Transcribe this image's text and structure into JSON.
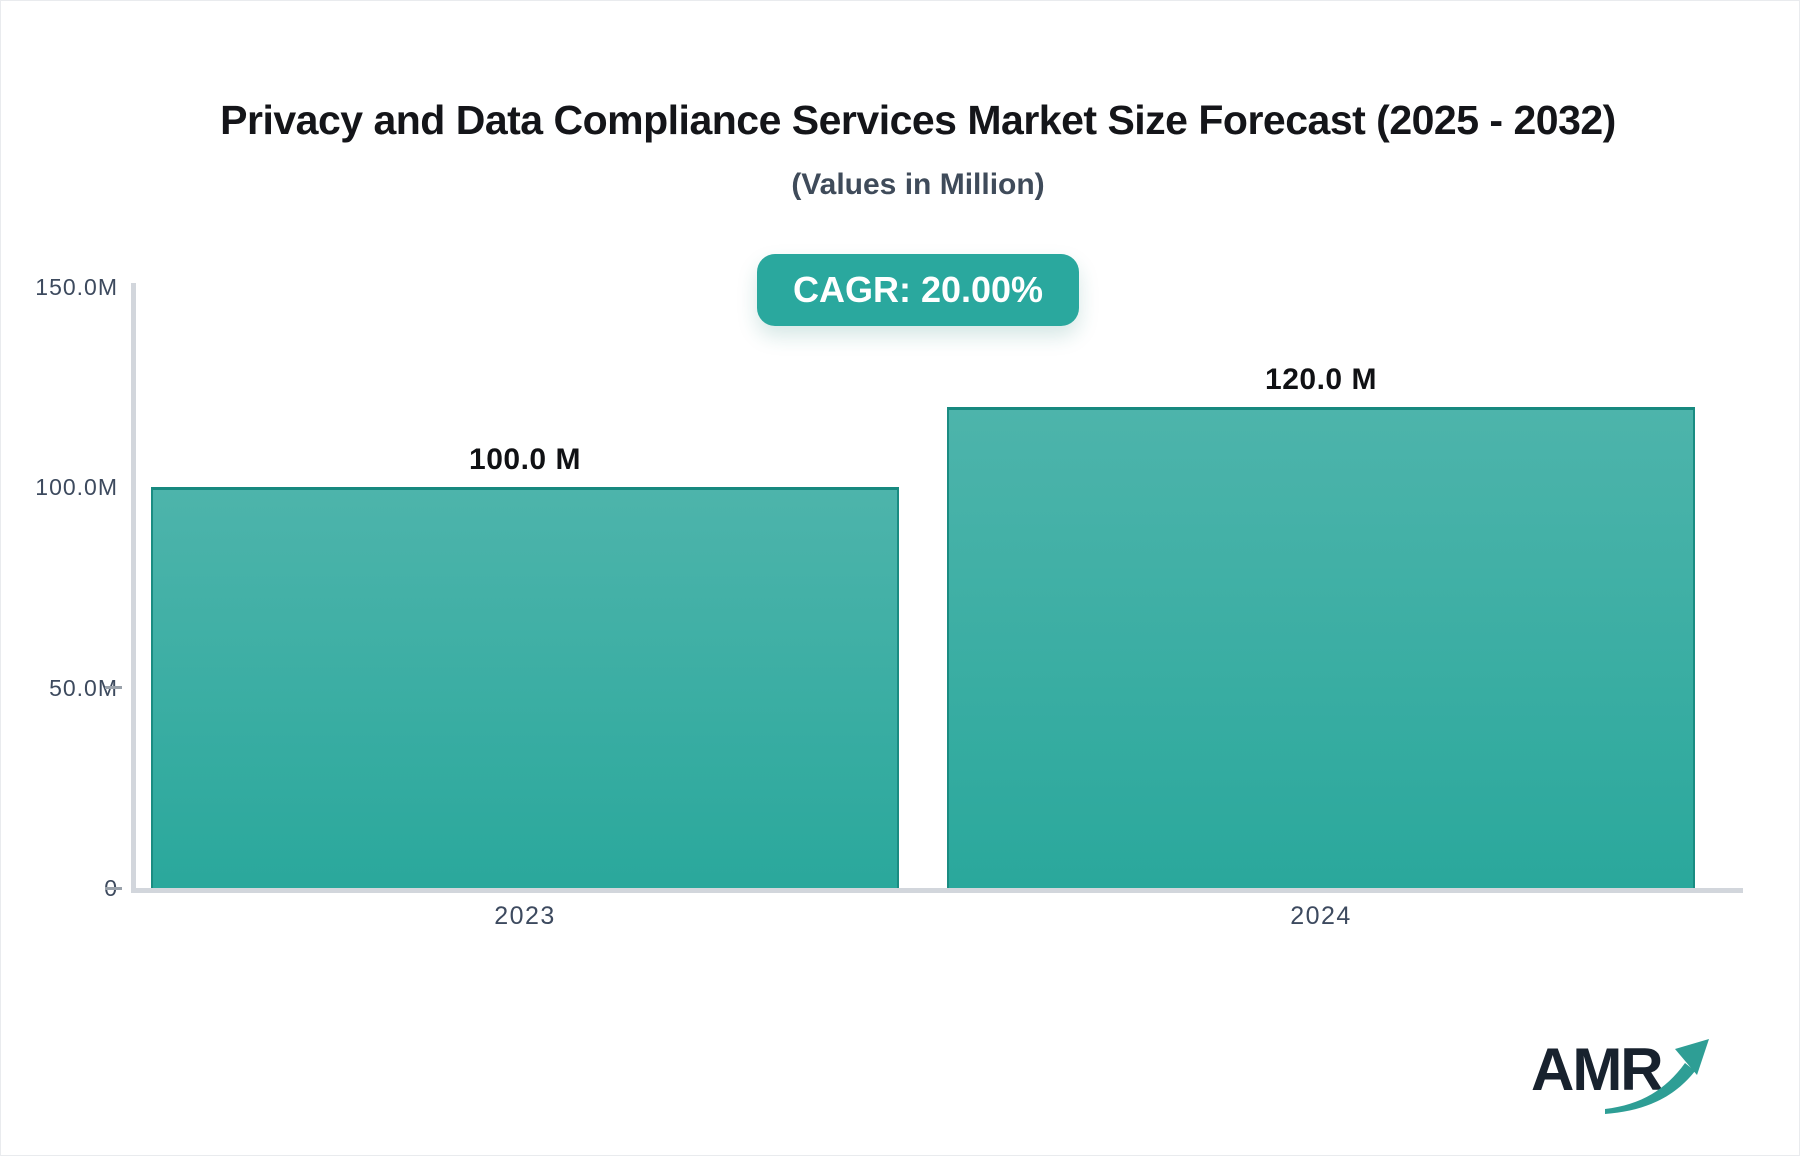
{
  "title": "Privacy and Data Compliance Services Market Size Forecast (2025 - 2032)",
  "subtitle": "(Values in Million)",
  "badge": {
    "label": "CAGR: 20.00%"
  },
  "logo": {
    "text": "AMR",
    "icon": "growth-arrow-icon"
  },
  "colors": {
    "accent_teal": "#2aa89e",
    "bar_gradient_top": "#4db4ab",
    "bar_gradient_bottom": "#2aa89c",
    "bar_border": "#17897f",
    "axis_line": "#d2d6dc",
    "axis_label": "#3d4a5e",
    "title_text": "#141519",
    "subtitle_text": "#3f4b5a",
    "badge_text": "#ffffff",
    "logo_text": "#18222e",
    "logo_arrow": "#2e9e95"
  },
  "chart_data": {
    "type": "bar",
    "title": "Privacy and Data Compliance Services Market Size Forecast (2025 - 2032)",
    "subtitle": "(Values in Million)",
    "categories": [
      "2023",
      "2024"
    ],
    "values": [
      100.0,
      120.0
    ],
    "value_labels": [
      "100.0 M",
      "120.0 M"
    ],
    "unit": "M",
    "ylim": [
      0,
      150
    ],
    "yticks": [
      {
        "value": 150,
        "label": "150.0M",
        "tick": false
      },
      {
        "value": 100,
        "label": "100.0M",
        "tick": false
      },
      {
        "value": 50,
        "label": "50.0M",
        "tick": true
      },
      {
        "value": 0,
        "label": "0",
        "tick": true
      }
    ],
    "grid": false,
    "legend": false,
    "annotation": "CAGR: 20.00%"
  }
}
